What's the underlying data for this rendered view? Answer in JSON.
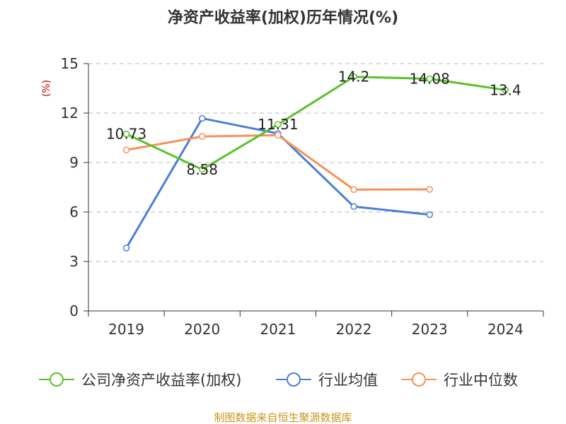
{
  "chart_data": {
    "type": "line",
    "title": "净资产收益率(加权)历年情况(%)",
    "ylabel": "(%)",
    "xlabel": "",
    "categories": [
      "2019",
      "2020",
      "2021",
      "2022",
      "2023",
      "2024"
    ],
    "ylim": [
      0,
      15
    ],
    "yticks": [
      0,
      3,
      6,
      9,
      12,
      15
    ],
    "grid": true,
    "legend_position": "bottom",
    "series": [
      {
        "name": "公司净资产收益率(加权)",
        "color": "#5bc22b",
        "values": [
          10.73,
          8.58,
          11.31,
          14.2,
          14.08,
          13.4
        ],
        "labels": [
          "10.73",
          "8.58",
          "11.31",
          "14.2",
          "14.08",
          "13.4"
        ]
      },
      {
        "name": "行业均值",
        "color": "#4a7fd6",
        "values": [
          3.82,
          11.68,
          10.76,
          6.33,
          5.84,
          null
        ]
      },
      {
        "name": "行业中位数",
        "color": "#f5925a",
        "values": [
          9.76,
          10.58,
          10.66,
          7.36,
          7.37,
          null
        ]
      }
    ],
    "source": "制图数据来自恒生聚源数据库"
  }
}
